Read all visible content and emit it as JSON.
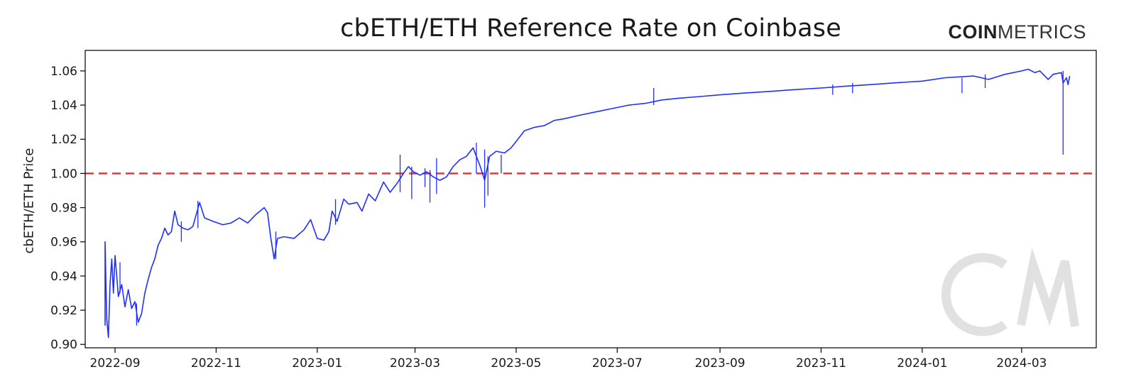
{
  "chart_data": {
    "type": "line",
    "title": "cbETH/ETH Reference Rate on Coinbase",
    "brand": {
      "bold": "COIN",
      "light": "METRICS"
    },
    "watermark": "CM",
    "xlabel": "",
    "ylabel": "cbETH/ETH Price",
    "x_ticks": [
      "2022-09",
      "2022-11",
      "2023-01",
      "2023-03",
      "2023-05",
      "2023-07",
      "2023-09",
      "2023-11",
      "2024-01",
      "2024-03"
    ],
    "y_ticks": [
      "0.90",
      "0.92",
      "0.94",
      "0.96",
      "0.98",
      "1.00",
      "1.02",
      "1.04",
      "1.06"
    ],
    "ylim": [
      0.898,
      1.072
    ],
    "xlim": [
      "2022-08-14",
      "2024-04-15"
    ],
    "grid": false,
    "reference_line": {
      "y": 1.0,
      "color": "#ee3333",
      "style": "dashed"
    },
    "series": [
      {
        "color": "#1f2fff",
        "points": [
          [
            "2022-08-26",
            0.911
          ],
          [
            "2022-08-26",
            0.96
          ],
          [
            "2022-08-27",
            0.915
          ],
          [
            "2022-08-28",
            0.904
          ],
          [
            "2022-08-29",
            0.935
          ],
          [
            "2022-08-30",
            0.95
          ],
          [
            "2022-08-31",
            0.93
          ],
          [
            "2022-09-01",
            0.952
          ],
          [
            "2022-09-02",
            0.94
          ],
          [
            "2022-09-03",
            0.928
          ],
          [
            "2022-09-05",
            0.935
          ],
          [
            "2022-09-07",
            0.922
          ],
          [
            "2022-09-09",
            0.932
          ],
          [
            "2022-09-11",
            0.921
          ],
          [
            "2022-09-13",
            0.925
          ],
          [
            "2022-09-15",
            0.913
          ],
          [
            "2022-09-17",
            0.918
          ],
          [
            "2022-09-19",
            0.93
          ],
          [
            "2022-09-21",
            0.938
          ],
          [
            "2022-09-23",
            0.945
          ],
          [
            "2022-09-25",
            0.95
          ],
          [
            "2022-09-27",
            0.958
          ],
          [
            "2022-09-29",
            0.962
          ],
          [
            "2022-10-01",
            0.968
          ],
          [
            "2022-10-03",
            0.964
          ],
          [
            "2022-10-05",
            0.966
          ],
          [
            "2022-10-07",
            0.978
          ],
          [
            "2022-10-09",
            0.97
          ],
          [
            "2022-10-12",
            0.968
          ],
          [
            "2022-10-15",
            0.967
          ],
          [
            "2022-10-18",
            0.969
          ],
          [
            "2022-10-22",
            0.983
          ],
          [
            "2022-10-25",
            0.974
          ],
          [
            "2022-10-30",
            0.972
          ],
          [
            "2022-11-05",
            0.97
          ],
          [
            "2022-11-10",
            0.971
          ],
          [
            "2022-11-15",
            0.974
          ],
          [
            "2022-11-20",
            0.971
          ],
          [
            "2022-11-25",
            0.976
          ],
          [
            "2022-11-30",
            0.98
          ],
          [
            "2022-12-02",
            0.977
          ],
          [
            "2022-12-04",
            0.962
          ],
          [
            "2022-12-06",
            0.95
          ],
          [
            "2022-12-08",
            0.962
          ],
          [
            "2022-12-12",
            0.963
          ],
          [
            "2022-12-18",
            0.962
          ],
          [
            "2022-12-24",
            0.967
          ],
          [
            "2022-12-28",
            0.973
          ],
          [
            "2023-01-01",
            0.962
          ],
          [
            "2023-01-05",
            0.961
          ],
          [
            "2023-01-08",
            0.966
          ],
          [
            "2023-01-10",
            0.978
          ],
          [
            "2023-01-13",
            0.972
          ],
          [
            "2023-01-17",
            0.985
          ],
          [
            "2023-01-20",
            0.982
          ],
          [
            "2023-01-25",
            0.983
          ],
          [
            "2023-01-28",
            0.978
          ],
          [
            "2023-02-01",
            0.988
          ],
          [
            "2023-02-05",
            0.984
          ],
          [
            "2023-02-10",
            0.995
          ],
          [
            "2023-02-14",
            0.989
          ],
          [
            "2023-02-18",
            0.994
          ],
          [
            "2023-02-22",
            1.0
          ],
          [
            "2023-02-25",
            1.004
          ],
          [
            "2023-02-28",
            1.001
          ],
          [
            "2023-03-04",
            0.999
          ],
          [
            "2023-03-08",
            1.001
          ],
          [
            "2023-03-12",
            0.998
          ],
          [
            "2023-03-16",
            0.996
          ],
          [
            "2023-03-20",
            0.998
          ],
          [
            "2023-03-24",
            1.004
          ],
          [
            "2023-03-28",
            1.008
          ],
          [
            "2023-04-01",
            1.01
          ],
          [
            "2023-04-05",
            1.015
          ],
          [
            "2023-04-09",
            1.005
          ],
          [
            "2023-04-12",
            0.996
          ],
          [
            "2023-04-15",
            1.01
          ],
          [
            "2023-04-19",
            1.013
          ],
          [
            "2023-04-24",
            1.012
          ],
          [
            "2023-04-28",
            1.015
          ],
          [
            "2023-05-02",
            1.02
          ],
          [
            "2023-05-06",
            1.025
          ],
          [
            "2023-05-12",
            1.027
          ],
          [
            "2023-05-18",
            1.028
          ],
          [
            "2023-05-24",
            1.031
          ],
          [
            "2023-05-30",
            1.032
          ],
          [
            "2023-06-08",
            1.034
          ],
          [
            "2023-06-18",
            1.036
          ],
          [
            "2023-06-28",
            1.038
          ],
          [
            "2023-07-08",
            1.04
          ],
          [
            "2023-07-18",
            1.041
          ],
          [
            "2023-07-28",
            1.043
          ],
          [
            "2023-08-07",
            1.044
          ],
          [
            "2023-08-20",
            1.045
          ],
          [
            "2023-09-01",
            1.046
          ],
          [
            "2023-09-15",
            1.047
          ],
          [
            "2023-10-01",
            1.048
          ],
          [
            "2023-10-15",
            1.049
          ],
          [
            "2023-11-01",
            1.05
          ],
          [
            "2023-11-15",
            1.051
          ],
          [
            "2023-12-01",
            1.052
          ],
          [
            "2023-12-15",
            1.053
          ],
          [
            "2024-01-01",
            1.054
          ],
          [
            "2024-01-15",
            1.056
          ],
          [
            "2024-02-01",
            1.057
          ],
          [
            "2024-02-10",
            1.055
          ],
          [
            "2024-02-20",
            1.058
          ],
          [
            "2024-03-01",
            1.06
          ],
          [
            "2024-03-05",
            1.061
          ],
          [
            "2024-03-09",
            1.059
          ],
          [
            "2024-03-12",
            1.06
          ],
          [
            "2024-03-17",
            1.055
          ],
          [
            "2024-03-20",
            1.058
          ],
          [
            "2024-03-25",
            1.059
          ],
          [
            "2024-03-26",
            1.053
          ],
          [
            "2024-03-28",
            1.056
          ],
          [
            "2024-03-29",
            1.052
          ],
          [
            "2024-03-30",
            1.057
          ]
        ],
        "spikes": [
          [
            "2022-09-04",
            0.93,
            0.948
          ],
          [
            "2022-09-14",
            0.911,
            0.924
          ],
          [
            "2022-10-11",
            0.96,
            0.972
          ],
          [
            "2022-10-21",
            0.968,
            0.984
          ],
          [
            "2022-12-07",
            0.95,
            0.966
          ],
          [
            "2023-01-12",
            0.97,
            0.985
          ],
          [
            "2023-02-20",
            0.989,
            1.011
          ],
          [
            "2023-02-27",
            0.985,
            1.004
          ],
          [
            "2023-03-07",
            0.992,
            1.003
          ],
          [
            "2023-03-10",
            0.983,
            1.002
          ],
          [
            "2023-03-14",
            0.988,
            1.009
          ],
          [
            "2023-04-07",
            1.0,
            1.018
          ],
          [
            "2023-04-12",
            0.98,
            1.014
          ],
          [
            "2023-04-14",
            0.987,
            1.01
          ],
          [
            "2023-04-22",
            1.0,
            1.011
          ],
          [
            "2023-07-23",
            1.04,
            1.05
          ],
          [
            "2023-11-08",
            1.046,
            1.052
          ],
          [
            "2023-11-20",
            1.047,
            1.053
          ],
          [
            "2024-01-25",
            1.047,
            1.056
          ],
          [
            "2024-02-08",
            1.05,
            1.058
          ],
          [
            "2024-03-26",
            1.011,
            1.06
          ]
        ]
      }
    ]
  }
}
